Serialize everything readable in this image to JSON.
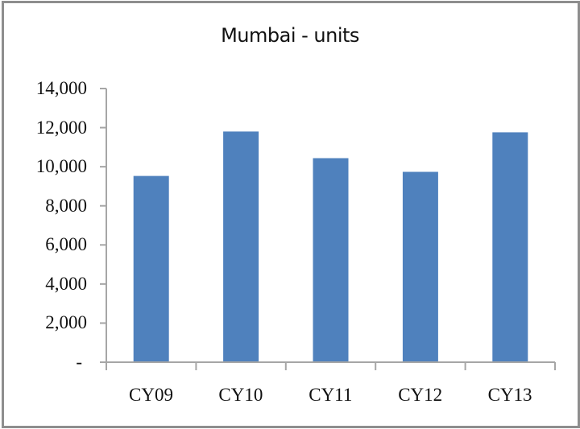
{
  "chart_data": {
    "type": "bar",
    "title": "Mumbai - units",
    "xlabel": "",
    "ylabel": "",
    "categories": [
      "CY09",
      "CY10",
      "CY11",
      "CY12",
      "CY13"
    ],
    "values": [
      9530,
      11800,
      10440,
      9740,
      11760
    ],
    "ylim": [
      0,
      14000
    ],
    "yticks": [
      0,
      2000,
      4000,
      6000,
      8000,
      10000,
      12000,
      14000
    ],
    "ytick_labels": [
      "-",
      "2,000",
      "4,000",
      "6,000",
      "8,000",
      "10,000",
      "12,000",
      "14,000"
    ],
    "grid": false,
    "legend": "none",
    "bar_color": "#4f81bd"
  }
}
